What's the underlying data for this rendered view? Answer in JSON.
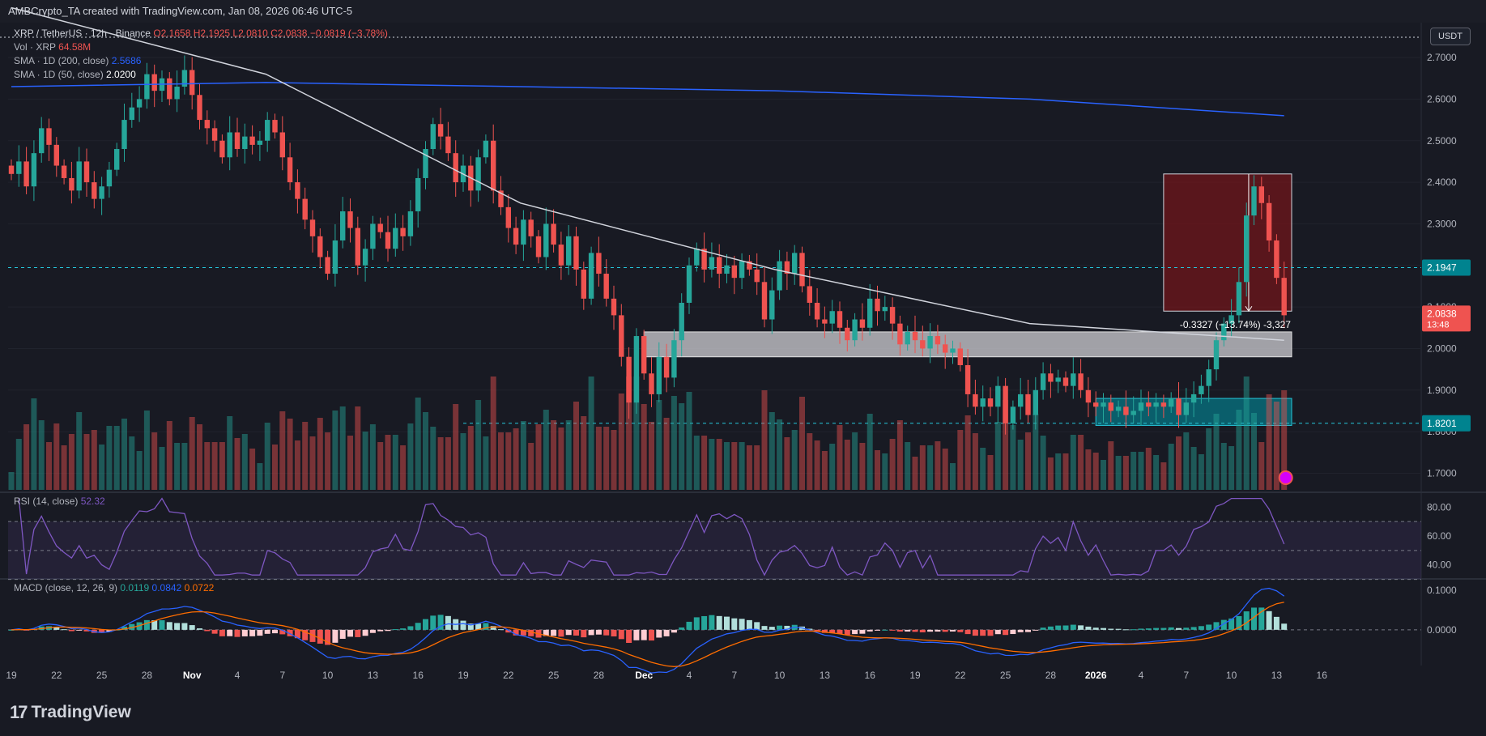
{
  "header": {
    "attribution": "AMBCrypto_TA created with TradingView.com, Jan 08, 2026 06:46 UTC-5"
  },
  "legend": {
    "symbol": "XRP / TetherUS · 12h · Binance",
    "ohlc": "O2.1658 H2.1925 L2.0810 C2.0838 −0.0819 (−3.78%)",
    "volume_label": "Vol · XRP",
    "volume_value": "64.58M",
    "sma200_label": "SMA · 1D (200, close)",
    "sma200_value": "2.5686",
    "sma50_label": "SMA · 1D (50, close)",
    "sma50_value": "2.0200",
    "rsi_label": "RSI (14, close)",
    "rsi_value": "52.32",
    "macd_label": "MACD (close, 12, 26, 9)",
    "macd_value": "0.0119",
    "macd_signal": "0.0842",
    "macd_hist": "0.0722"
  },
  "currency_button": "USDT",
  "price_labels": {
    "dashed_upper": "2.1947",
    "dashed_lower": "1.8201",
    "last_price": "2.0838",
    "countdown": "13:48"
  },
  "measure_text": "-0.3327 (−13.74%) -3,327",
  "branding": {
    "logo_mark": "17",
    "logo_name": "TradingView"
  },
  "colors": {
    "up": "#26a69a",
    "down": "#ef5350",
    "sma200": "#2962ff",
    "sma50": "#d1d4dc",
    "rsi": "#7e57c2",
    "macd": "#2962ff",
    "signal": "#ff6d00",
    "background": "#181a23"
  },
  "chart_data": {
    "type": "candlestick",
    "interval": "12h",
    "price_axis": {
      "ticks": [
        2.7,
        2.6,
        2.5,
        2.4,
        2.3,
        2.2,
        2.1,
        2.0,
        1.9,
        1.8,
        1.7
      ],
      "tick_labels": [
        "2.7000",
        "2.6000",
        "2.5000",
        "2.4000",
        "2.3000",
        "2.2000",
        "2.1000",
        "2.0000",
        "1.9000",
        "1.8000",
        "1.7000"
      ],
      "range": [
        1.66,
        2.78
      ]
    },
    "rsi_axis": {
      "ticks": [
        80,
        60,
        40
      ],
      "tick_labels": [
        "80.00",
        "60.00",
        "40.00"
      ],
      "range": [
        32,
        88
      ],
      "bands": [
        70,
        50,
        30
      ]
    },
    "macd_axis": {
      "ticks": [
        0.1,
        0.0
      ],
      "tick_labels": [
        "0.1000",
        "0.0000"
      ],
      "range": [
        -0.09,
        0.12
      ]
    },
    "x_axis": {
      "labels": [
        "19",
        "22",
        "25",
        "28",
        "Nov",
        "4",
        "7",
        "10",
        "13",
        "16",
        "19",
        "22",
        "25",
        "28",
        "Dec",
        "4",
        "7",
        "10",
        "13",
        "16",
        "19",
        "22",
        "25",
        "28",
        "2026",
        "4",
        "7",
        "10",
        "13",
        "16"
      ],
      "label_index": [
        0,
        6,
        12,
        18,
        24,
        30,
        36,
        42,
        48,
        54,
        60,
        66,
        72,
        78,
        84,
        90,
        96,
        102,
        108,
        114,
        120,
        126,
        132,
        138,
        144,
        150,
        156,
        162,
        168,
        174
      ]
    },
    "candles_close": [
      2.42,
      2.45,
      2.39,
      2.47,
      2.53,
      2.49,
      2.44,
      2.41,
      2.38,
      2.45,
      2.4,
      2.36,
      2.39,
      2.43,
      2.48,
      2.55,
      2.58,
      2.6,
      2.66,
      2.62,
      2.65,
      2.6,
      2.63,
      2.67,
      2.61,
      2.55,
      2.53,
      2.5,
      2.46,
      2.52,
      2.48,
      2.51,
      2.49,
      2.5,
      2.55,
      2.52,
      2.46,
      2.4,
      2.36,
      2.31,
      2.27,
      2.22,
      2.18,
      2.26,
      2.33,
      2.29,
      2.2,
      2.24,
      2.3,
      2.28,
      2.24,
      2.29,
      2.27,
      2.33,
      2.41,
      2.48,
      2.54,
      2.51,
      2.47,
      2.4,
      2.44,
      2.38,
      2.46,
      2.5,
      2.38,
      2.34,
      2.29,
      2.25,
      2.31,
      2.27,
      2.22,
      2.3,
      2.25,
      2.2,
      2.27,
      2.19,
      2.12,
      2.23,
      2.18,
      2.12,
      2.08,
      1.98,
      1.87,
      2.03,
      1.94,
      1.89,
      1.98,
      1.93,
      2.02,
      2.11,
      2.2,
      2.24,
      2.19,
      2.22,
      2.18,
      2.2,
      2.17,
      2.21,
      2.19,
      2.16,
      2.07,
      2.14,
      2.21,
      2.18,
      2.23,
      2.15,
      2.11,
      2.07,
      2.06,
      2.09,
      2.05,
      2.02,
      2.07,
      2.05,
      2.12,
      2.09,
      2.1,
      2.06,
      2.01,
      2.04,
      2.02,
      2.0,
      2.03,
      2.01,
      1.99,
      2.0,
      1.96,
      1.89,
      1.86,
      1.88,
      1.86,
      1.91,
      1.82,
      1.86,
      1.89,
      1.84,
      1.9,
      1.94,
      1.92,
      1.93,
      1.91,
      1.94,
      1.9,
      1.87,
      1.86,
      1.87,
      1.85,
      1.86,
      1.84,
      1.85,
      1.87,
      1.86,
      1.87,
      1.86,
      1.88,
      1.84,
      1.87,
      1.89,
      1.91,
      1.95,
      2.02,
      2.06,
      2.08,
      2.16,
      2.32,
      2.39,
      2.35,
      2.26,
      2.17,
      2.08
    ],
    "sma200": {
      "start_index": 0,
      "values": [
        2.63,
        2.64,
        2.63,
        2.62,
        2.6,
        2.56
      ]
    },
    "sma50": {
      "start_index": 0,
      "values": [
        2.82,
        2.66,
        2.35,
        2.19,
        2.06,
        2.02
      ]
    },
    "zones": [
      {
        "name": "resistance",
        "from_index": 84,
        "to_index": 170,
        "low": 1.98,
        "high": 2.04
      },
      {
        "name": "support",
        "from_index": 144,
        "to_index": 170,
        "low": 1.815,
        "high": 1.88
      }
    ],
    "measure": {
      "from_index": 153,
      "to_index": 170,
      "high": 2.42,
      "low": 2.09
    }
  }
}
